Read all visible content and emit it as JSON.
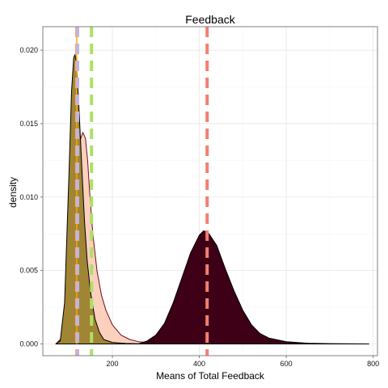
{
  "chart_data": {
    "type": "area",
    "title": "Feedback",
    "xlabel": "Means of Total Feedback",
    "ylabel": "density",
    "xlim": [
      40,
      810
    ],
    "ylim": [
      -0.0008,
      0.0216
    ],
    "x_ticks": [
      200,
      400,
      600,
      800
    ],
    "x_tick_labels": [
      "200",
      "400",
      "600",
      "800"
    ],
    "y_ticks": [
      0.0,
      0.005,
      0.01,
      0.015,
      0.02
    ],
    "y_tick_labels": [
      "0.000",
      "0.005",
      "0.010",
      "0.015",
      "0.020"
    ],
    "grid": true,
    "legend": "none",
    "series": [
      {
        "fill": "#fbd0bd",
        "stroke": "#6b0f1a",
        "x": [
          70,
          90,
          105,
          115,
          125,
          132,
          138,
          143,
          148,
          155,
          165,
          175,
          185,
          200,
          220,
          240,
          260,
          280,
          300,
          320,
          360,
          400,
          450,
          500,
          600,
          700,
          790
        ],
        "y": [
          0.0,
          0.0006,
          0.0045,
          0.0103,
          0.0138,
          0.0144,
          0.014,
          0.0125,
          0.0102,
          0.0075,
          0.0049,
          0.0033,
          0.0023,
          0.0013,
          0.0006,
          0.0003,
          0.00015,
          0.0001,
          6e-05,
          4e-05,
          2e-05,
          1e-05,
          0.0,
          0.0,
          0.0,
          0.0,
          0.0
        ]
      },
      {
        "fill": "#a08535",
        "stroke": "#000000",
        "x": [
          70,
          80,
          90,
          100,
          106,
          111,
          114,
          117,
          120,
          124,
          130,
          136,
          142,
          150,
          160,
          170,
          180,
          200,
          230,
          260,
          300,
          400,
          600,
          790
        ],
        "y": [
          0.0,
          0.0002,
          0.0028,
          0.0115,
          0.0172,
          0.0195,
          0.0197,
          0.0192,
          0.0178,
          0.0155,
          0.0118,
          0.0083,
          0.0057,
          0.0035,
          0.0017,
          0.0008,
          0.0003,
          0.0001,
          3e-05,
          1e-05,
          0.0,
          0.0,
          0.0,
          0.0
        ]
      },
      {
        "fill": "#3d0017",
        "stroke": "#000000",
        "x": [
          260,
          280,
          300,
          320,
          340,
          360,
          380,
          400,
          410,
          420,
          440,
          460,
          480,
          500,
          520,
          540,
          560,
          600,
          650,
          700,
          790
        ],
        "y": [
          0.0,
          0.0002,
          0.0006,
          0.0014,
          0.0028,
          0.0045,
          0.0062,
          0.0074,
          0.0077,
          0.0076,
          0.0067,
          0.0051,
          0.0036,
          0.0023,
          0.0013,
          0.0007,
          0.0004,
          0.00015,
          5e-05,
          2e-05,
          0.0
        ]
      }
    ],
    "vlines": [
      {
        "x": 118,
        "color": "#f4a582",
        "dash": "dashed"
      },
      {
        "x": 120,
        "color": "#c2b5d8",
        "dash": "dashed"
      },
      {
        "x": 152,
        "color": "#aee063",
        "dash": "dashed"
      },
      {
        "x": 418,
        "color": "#f28072",
        "dash": "dashed"
      }
    ],
    "spike": {
      "x": 118,
      "color": "#ffa500"
    }
  }
}
